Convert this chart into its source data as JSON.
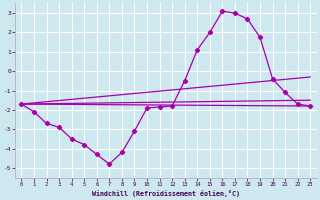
{
  "xlabel": "Windchill (Refroidissement éolien,°C)",
  "background_color": "#cde8ee",
  "grid_color": "#ffffff",
  "line_color": "#aa00aa",
  "xlim": [
    -0.5,
    23.5
  ],
  "ylim": [
    -5.5,
    3.5
  ],
  "yticks": [
    -5,
    -4,
    -3,
    -2,
    -1,
    0,
    1,
    2,
    3
  ],
  "xticks": [
    0,
    1,
    2,
    3,
    4,
    5,
    6,
    7,
    8,
    9,
    10,
    11,
    12,
    13,
    14,
    15,
    16,
    17,
    18,
    19,
    20,
    21,
    22,
    23
  ],
  "main_x": [
    0,
    1,
    2,
    3,
    4,
    5,
    6,
    7,
    8,
    9,
    10,
    11,
    12,
    13,
    14,
    15,
    16,
    17,
    18,
    19,
    20,
    21,
    22,
    23
  ],
  "main_y": [
    -1.7,
    -2.1,
    -2.7,
    -2.9,
    -3.5,
    -3.8,
    -4.3,
    -4.8,
    -4.2,
    -3.1,
    -1.9,
    -1.85,
    -1.8,
    -0.5,
    1.1,
    2.0,
    3.1,
    3.0,
    2.7,
    1.75,
    -0.4,
    -1.1,
    -1.7,
    -1.8
  ],
  "trend_lines": [
    {
      "x0": 0,
      "y0": -1.7,
      "x1": 23,
      "y1": -1.8
    },
    {
      "x0": 0,
      "y0": -1.7,
      "x1": 23,
      "y1": -1.5
    },
    {
      "x0": 0,
      "y0": -1.7,
      "x1": 23,
      "y1": -0.3
    }
  ]
}
